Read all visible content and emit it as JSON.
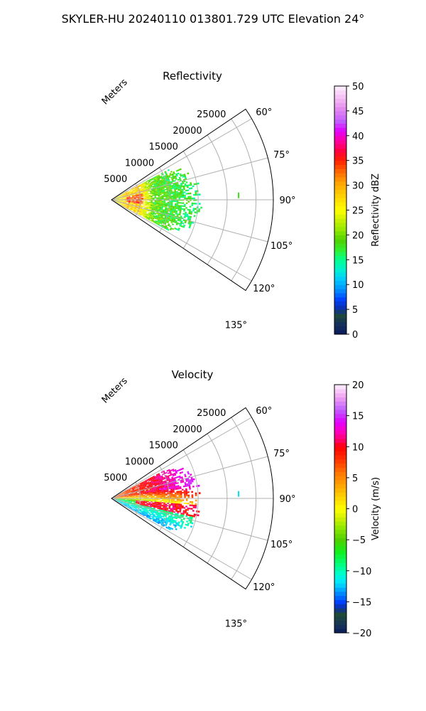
{
  "suptitle": "SKYLER-HU  20240110  013801.729 UTC Elevation 24°",
  "chart_data": [
    {
      "type": "polar-ppi",
      "title": "Reflectivity",
      "range_label": "Meters",
      "radial_ticks": [
        "5000",
        "10000",
        "15000",
        "20000",
        "25000"
      ],
      "range_values_m": [
        5000,
        10000,
        15000,
        20000,
        25000
      ],
      "range_max_m": 28000,
      "azimuth_tick_labels": [
        "60°",
        "75°",
        "90°",
        "105°",
        "120°",
        "135°"
      ],
      "azimuth_ticks_deg": [
        60,
        75,
        90,
        105,
        120,
        135
      ],
      "azimuth_range_deg": [
        56,
        124
      ],
      "grid": true,
      "colorbar": {
        "label": "Reflectivity dBZ",
        "range": [
          0,
          50
        ],
        "ticks": [
          "0",
          "5",
          "10",
          "15",
          "20",
          "25",
          "30",
          "35",
          "40",
          "45",
          "50"
        ],
        "tick_values": [
          0,
          5,
          10,
          15,
          20,
          25,
          30,
          35,
          40,
          45,
          50
        ]
      },
      "echo_summary": {
        "azimuth_extent_deg": [
          62,
          118
        ],
        "max_range_m": 15000,
        "peak_value": 38,
        "peak_range_m": [
          3000,
          6000
        ],
        "isolated_echo": {
          "azimuth_deg": 88,
          "range_m": 22000,
          "value": 18
        }
      }
    },
    {
      "type": "polar-ppi",
      "title": "Velocity",
      "range_label": "Meters",
      "radial_ticks": [
        "5000",
        "10000",
        "15000",
        "20000",
        "25000"
      ],
      "range_values_m": [
        5000,
        10000,
        15000,
        20000,
        25000
      ],
      "range_max_m": 28000,
      "azimuth_tick_labels": [
        "60°",
        "75°",
        "90°",
        "105°",
        "120°",
        "135°"
      ],
      "azimuth_ticks_deg": [
        60,
        75,
        90,
        105,
        120,
        135
      ],
      "azimuth_range_deg": [
        56,
        124
      ],
      "grid": true,
      "colorbar": {
        "label": "Velocity (m/s)",
        "range": [
          -20,
          20
        ],
        "ticks": [
          "−20",
          "−15",
          "−10",
          "−5",
          "0",
          "5",
          "10",
          "15",
          "20"
        ],
        "tick_values": [
          -20,
          -15,
          -10,
          -5,
          0,
          5,
          10,
          15,
          20
        ]
      },
      "echo_summary": {
        "azimuth_extent_deg": [
          62,
          118
        ],
        "max_range_m": 15000,
        "positive_band_azimuth_deg": [
          62,
          82
        ],
        "negative_band_azimuth_deg": [
          88,
          118
        ],
        "max_value": 12,
        "min_value": -14,
        "isolated_echo": {
          "azimuth_deg": 88,
          "range_m": 22000,
          "value": -12
        }
      }
    }
  ]
}
